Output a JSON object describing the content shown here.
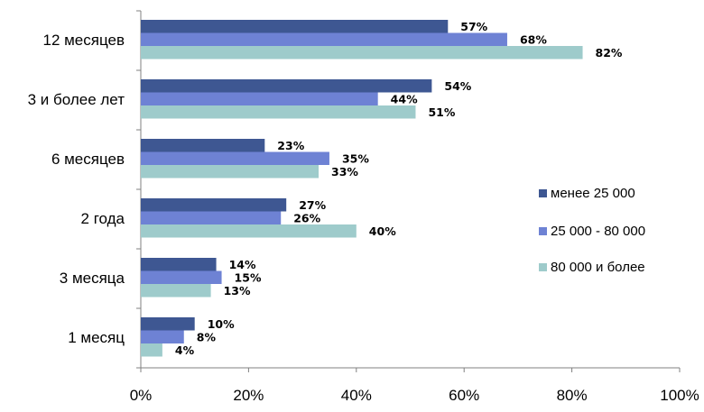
{
  "chart_data": {
    "type": "bar",
    "orientation": "horizontal",
    "categories": [
      "12 месяцев",
      "3 и более лет",
      "6 месяцев",
      "2 года",
      "3 месяца",
      "1 месяц"
    ],
    "series": [
      {
        "name": "менее 25 000",
        "color": "#3E5792",
        "values": [
          57,
          54,
          23,
          27,
          14,
          10
        ],
        "labels": [
          "57%",
          "54%",
          "23%",
          "27%",
          "14%",
          "10%"
        ]
      },
      {
        "name": "25 000 - 80 000",
        "color": "#6E82D4",
        "values": [
          68,
          44,
          35,
          26,
          15,
          8
        ],
        "labels": [
          "68%",
          "44%",
          "35%",
          "26%",
          "15%",
          "8%"
        ]
      },
      {
        "name": "80 000 и более",
        "color": "#9ECBCB",
        "values": [
          82,
          51,
          33,
          40,
          13,
          4
        ],
        "labels": [
          "82%",
          "51%",
          "33%",
          "40%",
          "13%",
          "4%"
        ]
      }
    ],
    "xlim": [
      0,
      100
    ],
    "x_ticks": [
      0,
      20,
      40,
      60,
      80,
      100
    ],
    "x_tick_labels": [
      "0%",
      "20%",
      "40%",
      "60%",
      "80%",
      "100%"
    ],
    "grid": false,
    "legend_position": "right"
  }
}
